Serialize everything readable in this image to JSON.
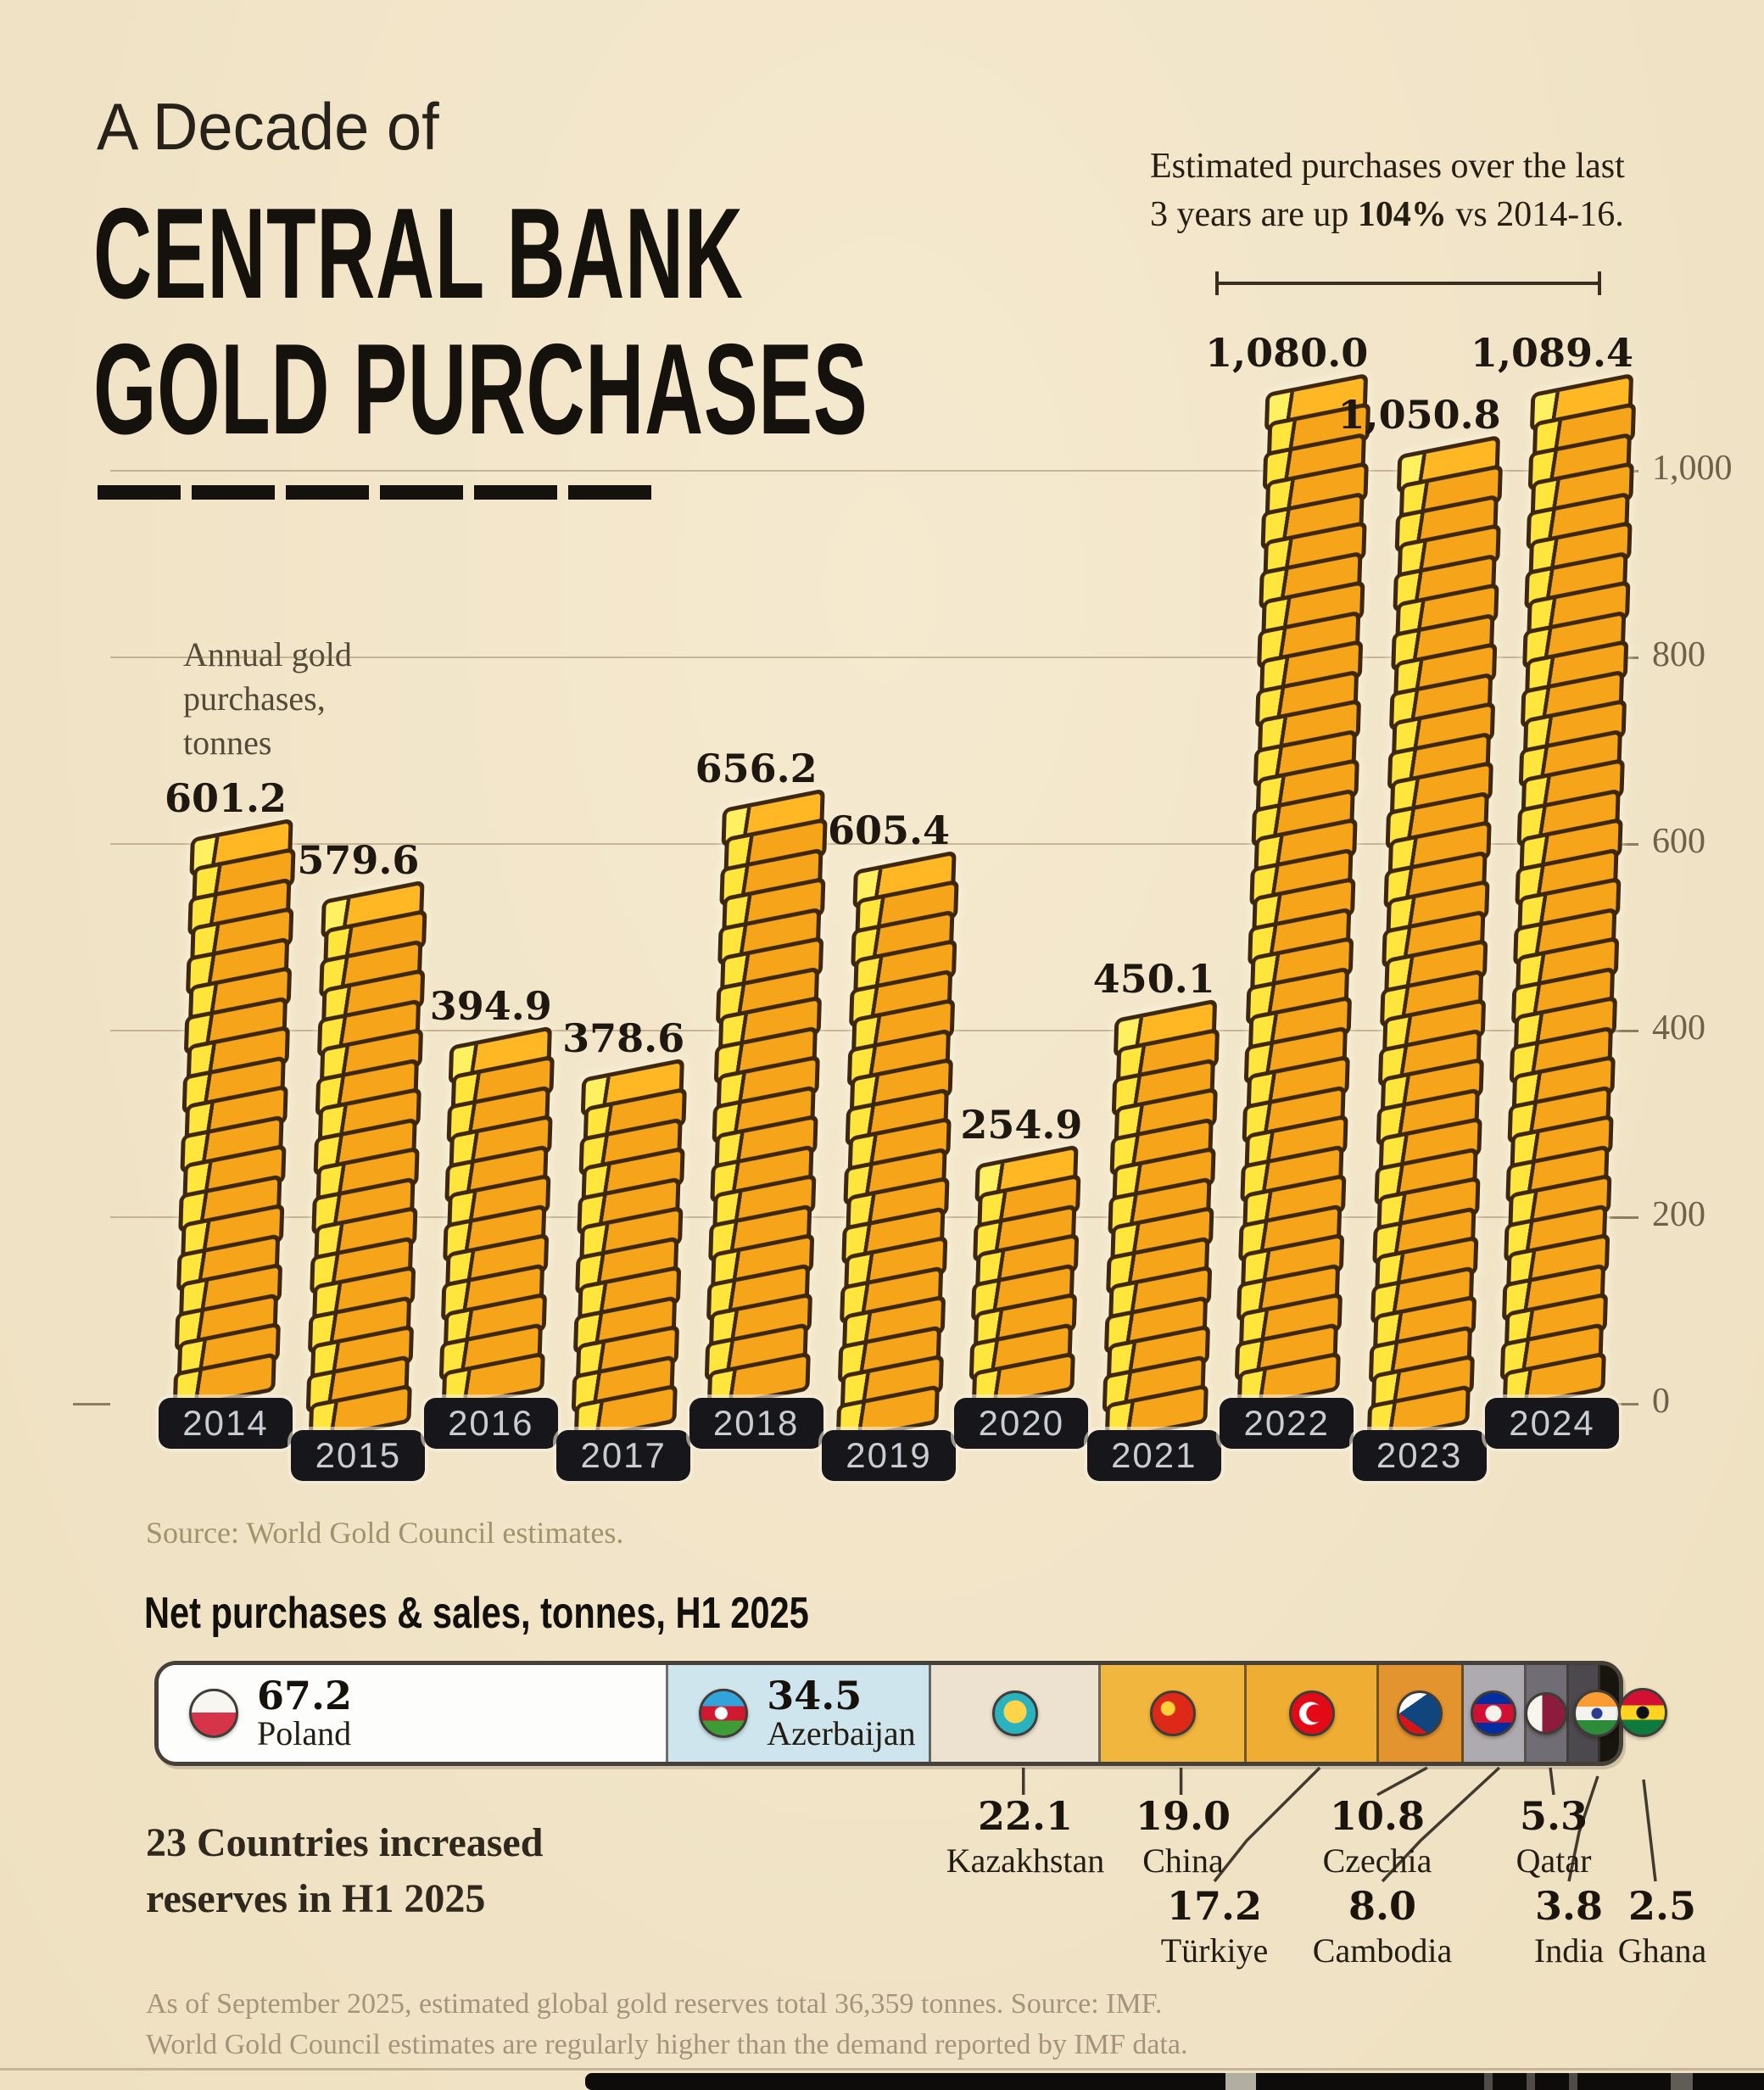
{
  "header": {
    "kicker": "A Decade of",
    "title_line1": "CENTRAL BANK",
    "title_line2": "GOLD PURCHASES",
    "annotation_line1": "Estimated purchases over the last",
    "annotation_line2_pre": "3 years are up ",
    "annotation_bold": "104%",
    "annotation_line2_post": " vs 2014-16."
  },
  "chart_data": {
    "type": "bar",
    "title": "A Decade of Central Bank Gold Purchases",
    "ylabel_lines": [
      "Annual gold",
      "purchases,",
      "tonnes"
    ],
    "categories": [
      "2014",
      "2015",
      "2016",
      "2017",
      "2018",
      "2019",
      "2020",
      "2021",
      "2022",
      "2023",
      "2024"
    ],
    "values": [
      601.2,
      579.6,
      394.9,
      378.6,
      656.2,
      605.4,
      254.9,
      450.1,
      1080.0,
      1050.8,
      1089.4
    ],
    "value_labels": [
      "601.2",
      "579.6",
      "394.9",
      "378.6",
      "656.2",
      "605.4",
      "254.9",
      "450.1",
      "1,080.0",
      "1,050.8",
      "1,089.4"
    ],
    "ylim": [
      0,
      1100
    ],
    "yticks": [
      0,
      200,
      400,
      600,
      800,
      1000
    ],
    "ytick_labels": [
      "0",
      "200",
      "400",
      "600",
      "800",
      "1,000"
    ],
    "grid": true,
    "legend": "none",
    "bar_style": {
      "face": "#f6a51a",
      "facet": "#ffe53c",
      "outline": "#3d270e"
    }
  },
  "source": "Source: World Gold Council estimates.",
  "bottom": {
    "heading": "Net purchases & sales, tonnes, H1 2025",
    "note_line1": "23 Countries increased",
    "note_line2": "reserves in H1 2025",
    "countries": [
      {
        "name": "Poland",
        "value": "67.2",
        "num": 67.2,
        "color": "#fdfdfc",
        "flag": "poland",
        "label": "inside"
      },
      {
        "name": "Azerbaijan",
        "value": "34.5",
        "num": 34.5,
        "color": "#cfe5ee",
        "flag": "azerbaijan",
        "label": "inside"
      },
      {
        "name": "Kazakhstan",
        "value": "22.1",
        "num": 22.1,
        "color": "#ece2cf",
        "flag": "kazakhstan",
        "label": "row1"
      },
      {
        "name": "China",
        "value": "19.0",
        "num": 19.0,
        "color": "#f1b63e",
        "flag": "china",
        "label": "row1"
      },
      {
        "name": "Türkiye",
        "value": "17.2",
        "num": 17.2,
        "color": "#f0ad33",
        "flag": "turkiye",
        "label": "row2"
      },
      {
        "name": "Czechia",
        "value": "10.8",
        "num": 10.8,
        "color": "#e3942f",
        "flag": "czechia",
        "label": "row1"
      },
      {
        "name": "Cambodia",
        "value": "8.0",
        "num": 8.0,
        "color": "#adaab0",
        "flag": "cambodia",
        "label": "row2"
      },
      {
        "name": "Qatar",
        "value": "5.3",
        "num": 5.3,
        "color": "#716d74",
        "flag": "qatar",
        "label": "row1"
      },
      {
        "name": "India",
        "value": "3.8",
        "num": 3.8,
        "color": "#4b484e",
        "flag": "india",
        "label": "row2"
      },
      {
        "name": "Ghana",
        "value": "2.5",
        "num": 2.5,
        "color": "#18150f",
        "flag": "ghana",
        "label": "row2"
      }
    ]
  },
  "footer": {
    "line1": "As of September 2025, estimated global gold reserves total 36,359 tonnes. Source: IMF.",
    "line2": "World Gold Council estimates are regularly higher than the demand reported by IMF data."
  }
}
